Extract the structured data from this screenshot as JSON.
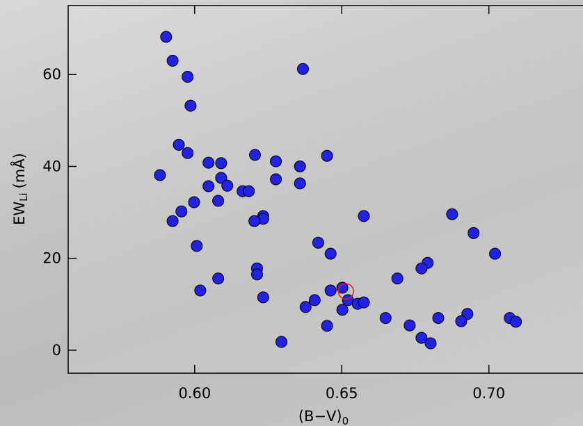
{
  "chart_data": {
    "type": "scatter",
    "xlabel_parts": [
      "(B−V)",
      "0"
    ],
    "ylabel_parts": [
      "EW",
      "Li",
      "(mÅ)"
    ],
    "xlim": [
      0.557,
      0.732
    ],
    "ylim": [
      -5,
      75
    ],
    "xticks": [
      {
        "value": 0.6,
        "label": "0.60"
      },
      {
        "value": 0.65,
        "label": "0.65"
      },
      {
        "value": 0.7,
        "label": "0.70"
      }
    ],
    "yticks": [
      0,
      20,
      40,
      60
    ],
    "color": "#2222e6",
    "x": [
      0.5903,
      0.5925,
      0.5976,
      0.5986,
      0.6368,
      0.5882,
      0.5946,
      0.5976,
      0.6047,
      0.609,
      0.6205,
      0.6276,
      0.6358,
      0.645,
      0.609,
      0.6047,
      0.6111,
      0.6163,
      0.6184,
      0.6276,
      0.6358,
      0.5998,
      0.608,
      0.5955,
      0.5925,
      0.6233,
      0.6233,
      0.6203,
      0.6575,
      0.6875,
      0.6948,
      0.6007,
      0.642,
      0.6462,
      0.7021,
      0.6792,
      0.6771,
      0.6212,
      0.6212,
      0.608,
      0.6689,
      0.6019,
      0.6462,
      0.6502,
      0.6233,
      0.6408,
      0.6377,
      0.6521,
      0.6554,
      0.6575,
      0.6502,
      0.6649,
      0.6828,
      0.6927,
      0.6906,
      0.7071,
      0.7092,
      0.645,
      0.6731,
      0.6771,
      0.6802,
      0.6295
    ],
    "values": [
      68.2,
      63.0,
      59.5,
      53.2,
      61.2,
      38.1,
      44.7,
      42.9,
      40.8,
      40.7,
      42.5,
      41.1,
      40.0,
      42.3,
      37.5,
      35.7,
      35.8,
      34.6,
      34.6,
      37.2,
      36.3,
      32.2,
      32.5,
      30.2,
      28.1,
      29.2,
      28.6,
      28.1,
      29.2,
      29.6,
      25.5,
      22.7,
      23.4,
      21.0,
      21.0,
      19.0,
      17.8,
      17.8,
      16.5,
      15.6,
      15.6,
      13.0,
      13.0,
      13.6,
      11.5,
      10.9,
      9.4,
      10.9,
      10.1,
      10.4,
      8.8,
      7.0,
      7.0,
      7.9,
      6.3,
      7.0,
      6.2,
      5.3,
      5.4,
      2.7,
      1.5,
      1.8
    ],
    "highlight": {
      "x": 0.6514,
      "y": 12.8,
      "color": "#e02020"
    }
  }
}
